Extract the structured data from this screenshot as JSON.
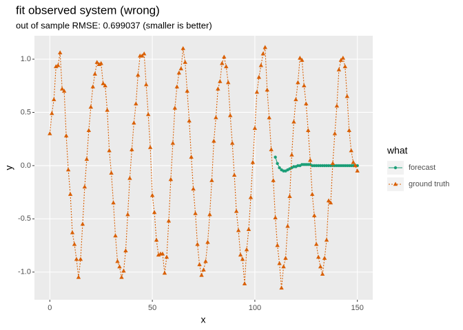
{
  "chart_data": {
    "type": "line",
    "title": "fit observed system (wrong)",
    "subtitle": "out of sample RMSE: 0.699037 (smaller is better)",
    "x_label": "x",
    "y_label": "y",
    "legend_title": "what",
    "legend_position": "right",
    "grid": true,
    "xlim": [
      -7.5,
      157.5
    ],
    "xticks": [
      0,
      50,
      100,
      150
    ],
    "ylim": [
      -1.26,
      1.22
    ],
    "yticks": [
      {
        "value": -1,
        "label": "-1.0"
      },
      {
        "value": -0.5,
        "label": "-0.5"
      },
      {
        "value": 0,
        "label": "0.0"
      },
      {
        "value": 0.5,
        "label": "0.5"
      },
      {
        "value": 1,
        "label": "1.0"
      }
    ],
    "series": [
      {
        "name": "forecast",
        "color": "#1b9e77",
        "marker": "circle",
        "line": "solid",
        "x": [
          110,
          111,
          112,
          113,
          114,
          115,
          116,
          117,
          118,
          119,
          120,
          121,
          122,
          123,
          124,
          125,
          126,
          127,
          128,
          129,
          130,
          131,
          132,
          133,
          134,
          135,
          136,
          137,
          138,
          139,
          140,
          141,
          142,
          143,
          144,
          145,
          146,
          147,
          148,
          149,
          150
        ],
        "values": [
          0.08,
          0.02,
          -0.02,
          -0.04,
          -0.05,
          -0.05,
          -0.04,
          -0.03,
          -0.02,
          -0.01,
          -0.01,
          0,
          0,
          0.01,
          0.01,
          0.01,
          0.01,
          0.01,
          0,
          0,
          0,
          0,
          0,
          0,
          0,
          0,
          0,
          0,
          0,
          0,
          0,
          0,
          0,
          0,
          0,
          0,
          0,
          0,
          0,
          0,
          0
        ]
      },
      {
        "name": "ground truth",
        "color": "#d95f02",
        "marker": "triangle",
        "line": "dotted",
        "x": [
          0,
          1,
          2,
          3,
          4,
          5,
          6,
          7,
          8,
          9,
          10,
          11,
          12,
          13,
          14,
          15,
          16,
          17,
          18,
          19,
          20,
          21,
          22,
          23,
          24,
          25,
          26,
          27,
          28,
          29,
          30,
          31,
          32,
          33,
          34,
          35,
          36,
          37,
          38,
          39,
          40,
          41,
          42,
          43,
          44,
          45,
          46,
          47,
          48,
          49,
          50,
          51,
          52,
          53,
          54,
          55,
          56,
          57,
          58,
          59,
          60,
          61,
          62,
          63,
          64,
          65,
          66,
          67,
          68,
          69,
          70,
          71,
          72,
          73,
          74,
          75,
          76,
          77,
          78,
          79,
          80,
          81,
          82,
          83,
          84,
          85,
          86,
          87,
          88,
          89,
          90,
          91,
          92,
          93,
          94,
          95,
          96,
          97,
          98,
          99,
          100,
          101,
          102,
          103,
          104,
          105,
          106,
          107,
          108,
          109,
          110,
          111,
          112,
          113,
          114,
          115,
          116,
          117,
          118,
          119,
          120,
          121,
          122,
          123,
          124,
          125,
          126,
          127,
          128,
          129,
          130,
          131,
          132,
          133,
          134,
          135,
          136,
          137,
          138,
          139,
          140,
          141,
          142,
          143,
          144,
          145,
          146,
          147,
          148,
          149,
          150
        ],
        "values": [
          0.3,
          0.49,
          0.62,
          0.93,
          0.94,
          1.06,
          0.72,
          0.7,
          0.28,
          -0.04,
          -0.27,
          -0.63,
          -0.74,
          -0.88,
          -1.05,
          -0.88,
          -0.55,
          -0.2,
          0.06,
          0.33,
          0.55,
          0.74,
          0.86,
          0.97,
          0.95,
          0.96,
          0.77,
          0.75,
          0.52,
          0.14,
          -0.07,
          -0.35,
          -0.66,
          -0.9,
          -0.95,
          -1.05,
          -0.99,
          -0.8,
          -0.46,
          -0.12,
          0.15,
          0.4,
          0.58,
          0.85,
          1.03,
          1.03,
          1.05,
          0.76,
          0.48,
          0.17,
          -0.28,
          -0.44,
          -0.7,
          -0.84,
          -0.83,
          -0.83,
          -1.01,
          -0.86,
          -0.52,
          -0.13,
          0.21,
          0.54,
          0.74,
          0.87,
          0.91,
          1.1,
          0.97,
          0.7,
          0.42,
          0.08,
          -0.22,
          -0.45,
          -0.74,
          -0.93,
          -1.03,
          -0.98,
          -0.9,
          -0.72,
          -0.46,
          -0.14,
          0.23,
          0.45,
          0.72,
          0.79,
          0.96,
          1.02,
          0.93,
          0.78,
          0.47,
          0.21,
          -0.09,
          -0.43,
          -0.61,
          -0.84,
          -0.88,
          -1.11,
          -0.79,
          -0.6,
          -0.3,
          0.03,
          0.35,
          0.69,
          0.83,
          0.94,
          1.05,
          1.11,
          0.71,
          0.45,
          0.15,
          -0.14,
          -0.49,
          -0.75,
          -0.92,
          -1.15,
          -0.95,
          -0.87,
          -0.57,
          -0.29,
          0.1,
          0.41,
          0.62,
          0.78,
          1.01,
          0.99,
          0.75,
          0.58,
          0.33,
          0.05,
          -0.27,
          -0.47,
          -0.74,
          -0.86,
          -0.95,
          -1.02,
          -0.87,
          -0.7,
          -0.33,
          -0.35,
          0.02,
          0.3,
          0.56,
          0.9,
          0.99,
          1.01,
          0.93,
          0.65,
          0.33,
          0.14,
          0.03,
          0.0,
          -0.05
        ]
      }
    ]
  }
}
